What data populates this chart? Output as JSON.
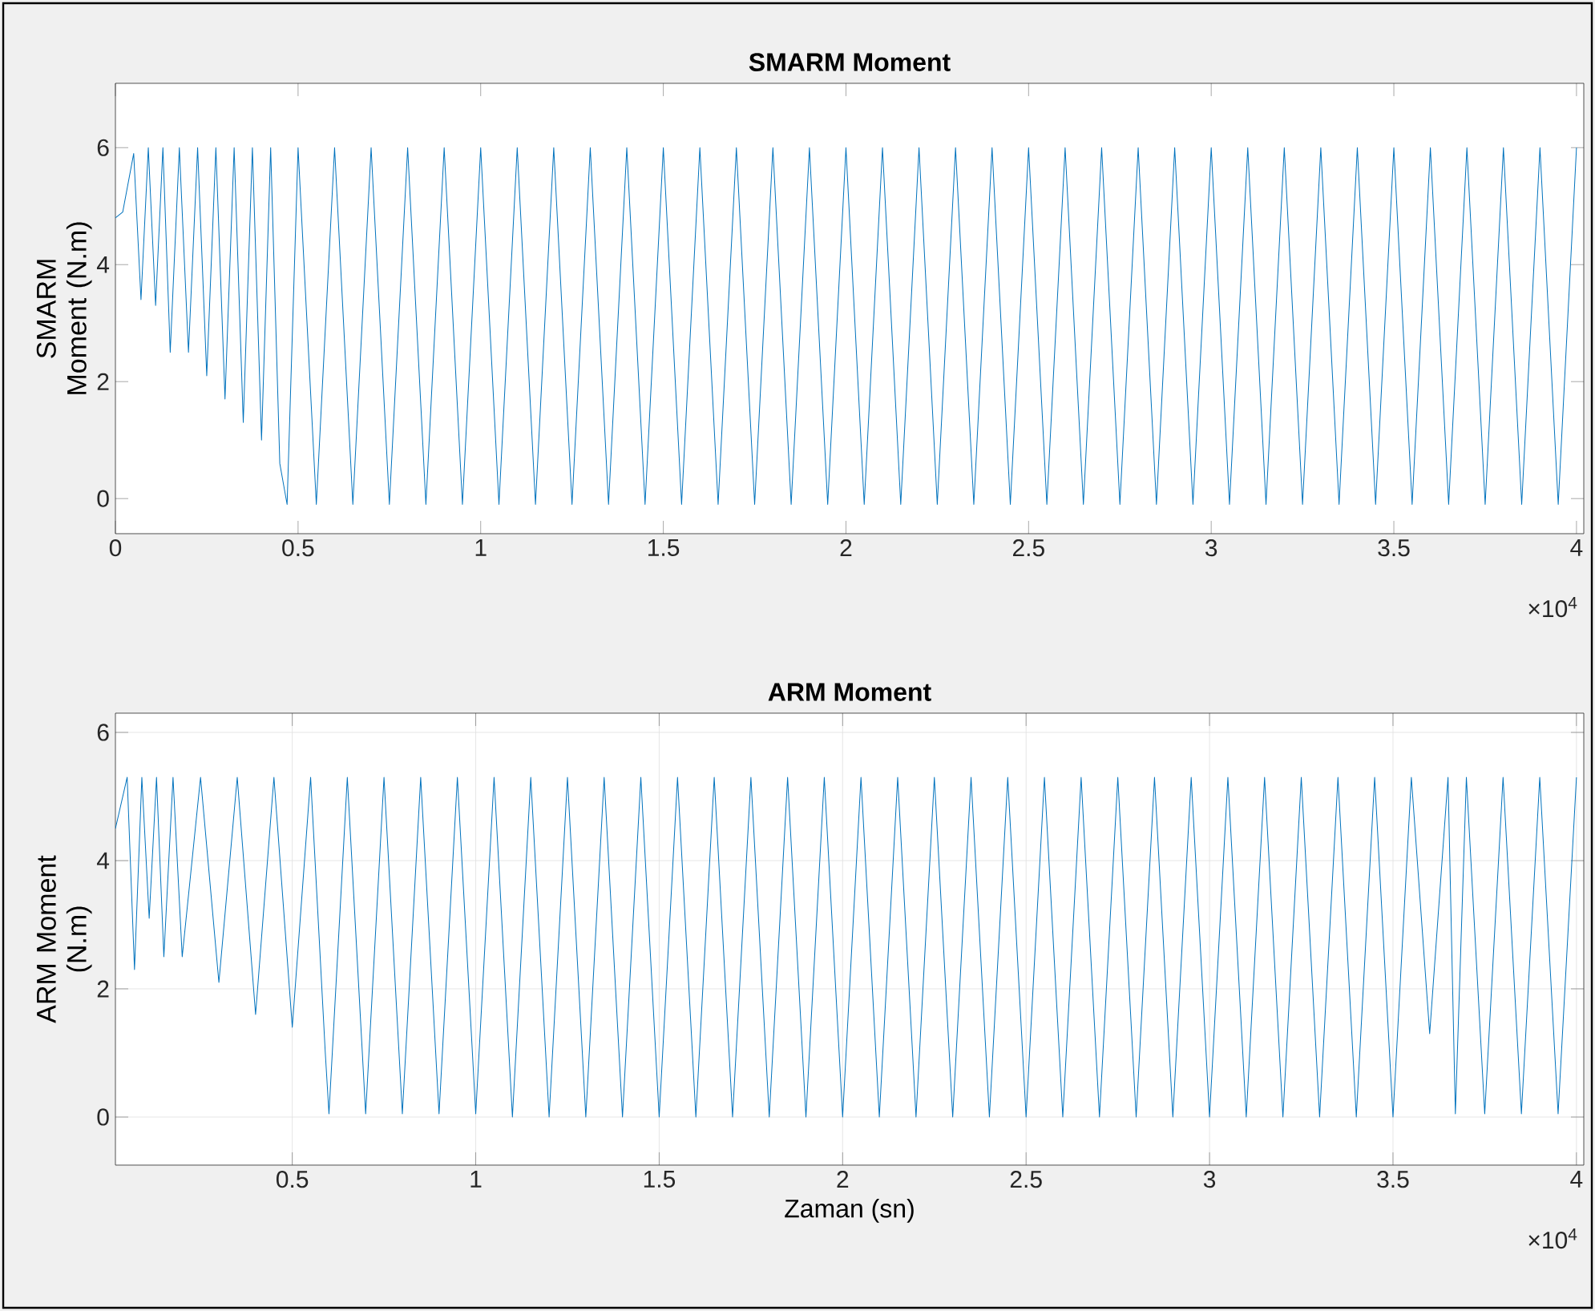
{
  "chart_data": [
    {
      "type": "line",
      "title": "SMARM Moment",
      "ylabel": "SMARM Moment (N.m)",
      "annotations": [
        "×10$^{4}$"
      ],
      "xlim": [
        0,
        4.02
      ],
      "ylim": [
        -0.6,
        7.1
      ],
      "xticks": [
        0,
        0.5,
        1,
        1.5,
        2,
        2.5,
        3,
        3.5,
        4
      ],
      "yticks": [
        0,
        2,
        4,
        6
      ],
      "grid": false,
      "series": [
        {
          "color": "#0072bd",
          "x": [
            0,
            0.02,
            0.05,
            0.07,
            0.09,
            0.11,
            0.13,
            0.15,
            0.175,
            0.2,
            0.225,
            0.25,
            0.275,
            0.3,
            0.325,
            0.35,
            0.375,
            0.4,
            0.425,
            0.45,
            0.47,
            0.5,
            0.55,
            0.6,
            0.65,
            0.7,
            0.75,
            0.8,
            0.85,
            0.9,
            0.95,
            1.0,
            1.05,
            1.1,
            1.15,
            1.2,
            1.25,
            1.3,
            1.35,
            1.4,
            1.45,
            1.5,
            1.55,
            1.6,
            1.65,
            1.7,
            1.75,
            1.8,
            1.85,
            1.9,
            1.95,
            2.0,
            2.05,
            2.1,
            2.15,
            2.2,
            2.25,
            2.3,
            2.35,
            2.4,
            2.45,
            2.5,
            2.55,
            2.6,
            2.65,
            2.7,
            2.75,
            2.8,
            2.85,
            2.9,
            2.95,
            3.0,
            3.05,
            3.1,
            3.15,
            3.2,
            3.25,
            3.3,
            3.35,
            3.4,
            3.45,
            3.5,
            3.55,
            3.6,
            3.65,
            3.7,
            3.75,
            3.8,
            3.85,
            3.9,
            3.95,
            4.0
          ],
          "values": [
            4.8,
            4.9,
            5.9,
            3.4,
            6.0,
            3.3,
            6.0,
            2.5,
            6.0,
            2.5,
            6.0,
            2.1,
            6.0,
            1.7,
            6.0,
            1.3,
            6.0,
            1.0,
            6.0,
            0.6,
            -0.1,
            6.0,
            -0.1,
            6.0,
            -0.1,
            6.0,
            -0.1,
            6.0,
            -0.1,
            6.0,
            -0.1,
            6.0,
            -0.1,
            6.0,
            -0.1,
            6.0,
            -0.1,
            6.0,
            -0.1,
            6.0,
            -0.1,
            6.0,
            -0.1,
            6.0,
            -0.1,
            6.0,
            -0.1,
            6.0,
            -0.1,
            6.0,
            -0.1,
            6.0,
            -0.1,
            6.0,
            -0.1,
            6.0,
            -0.1,
            6.0,
            -0.1,
            6.0,
            -0.1,
            6.0,
            -0.1,
            6.0,
            -0.1,
            6.0,
            -0.1,
            6.0,
            -0.1,
            6.0,
            -0.1,
            6.0,
            -0.1,
            6.0,
            -0.1,
            6.0,
            -0.1,
            6.0,
            -0.1,
            6.0,
            -0.1,
            6.0,
            -0.1,
            6.0,
            -0.1,
            6.0,
            -0.1,
            6.0,
            -0.1,
            6.0,
            -0.1,
            6.0
          ]
        }
      ]
    },
    {
      "type": "line",
      "title": "ARM Moment",
      "ylabel": "ARM Moment (N.m)",
      "xlabel": "Zaman (sn)",
      "annotations": [
        "×10$^{4}$"
      ],
      "xlim": [
        0.018,
        4.02
      ],
      "ylim": [
        -0.75,
        6.3
      ],
      "xticks": [
        0.5,
        1,
        1.5,
        2,
        2.5,
        3,
        3.5,
        4
      ],
      "yticks": [
        0,
        2,
        4,
        6
      ],
      "grid": true,
      "series": [
        {
          "color": "#0072bd",
          "x": [
            0.018,
            0.05,
            0.07,
            0.09,
            0.11,
            0.13,
            0.15,
            0.175,
            0.2,
            0.25,
            0.3,
            0.35,
            0.4,
            0.45,
            0.5,
            0.55,
            0.59,
            0.6,
            0.65,
            0.7,
            0.75,
            0.8,
            0.85,
            0.9,
            0.95,
            1.0,
            1.05,
            1.1,
            1.15,
            1.2,
            1.25,
            1.3,
            1.35,
            1.4,
            1.45,
            1.5,
            1.55,
            1.6,
            1.65,
            1.7,
            1.75,
            1.8,
            1.85,
            1.9,
            1.95,
            2.0,
            2.05,
            2.1,
            2.15,
            2.2,
            2.25,
            2.3,
            2.35,
            2.4,
            2.45,
            2.5,
            2.55,
            2.6,
            2.65,
            2.7,
            2.75,
            2.8,
            2.85,
            2.9,
            2.95,
            3.0,
            3.05,
            3.1,
            3.15,
            3.2,
            3.25,
            3.3,
            3.35,
            3.4,
            3.45,
            3.5,
            3.55,
            3.6,
            3.65,
            3.67,
            3.7,
            3.75,
            3.8,
            3.85,
            3.9,
            3.95,
            4.0
          ],
          "values": [
            4.5,
            5.3,
            2.3,
            5.3,
            3.1,
            5.3,
            2.5,
            5.3,
            2.5,
            5.3,
            2.1,
            5.3,
            1.6,
            5.3,
            1.4,
            5.3,
            1.0,
            0.05,
            5.3,
            0.05,
            5.3,
            0.05,
            5.3,
            0.05,
            5.3,
            0.05,
            5.3,
            0,
            5.3,
            0,
            5.3,
            0,
            5.3,
            0,
            5.3,
            0,
            5.3,
            0,
            5.3,
            0,
            5.3,
            0,
            5.3,
            0,
            5.3,
            0,
            5.3,
            0,
            5.3,
            0,
            5.3,
            0,
            5.3,
            0,
            5.3,
            0,
            5.3,
            0,
            5.3,
            0,
            5.3,
            0,
            5.3,
            0,
            5.3,
            0,
            5.3,
            0,
            5.3,
            0,
            5.3,
            0,
            5.3,
            0,
            5.3,
            0,
            5.3,
            1.3,
            5.3,
            0.05,
            5.3,
            0.05,
            5.3,
            0.05,
            5.3,
            0.05,
            5.3
          ]
        }
      ]
    }
  ]
}
